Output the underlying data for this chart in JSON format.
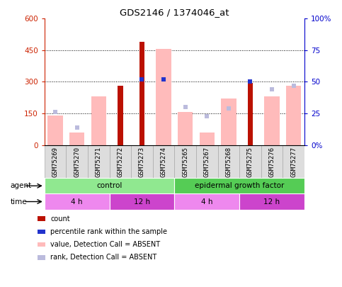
{
  "title": "GDS2146 / 1374046_at",
  "samples": [
    "GSM75269",
    "GSM75270",
    "GSM75271",
    "GSM75272",
    "GSM75273",
    "GSM75274",
    "GSM75265",
    "GSM75267",
    "GSM75268",
    "GSM75275",
    "GSM75276",
    "GSM75277"
  ],
  "count_values": [
    null,
    null,
    null,
    280,
    490,
    null,
    null,
    null,
    null,
    295,
    null,
    null
  ],
  "rank_values_pct": [
    null,
    null,
    null,
    null,
    52,
    52,
    null,
    null,
    null,
    50,
    null,
    null
  ],
  "absent_value": [
    140,
    60,
    230,
    null,
    null,
    455,
    155,
    60,
    220,
    null,
    230,
    280
  ],
  "absent_rank_pct": [
    26,
    14,
    null,
    null,
    null,
    null,
    30,
    23,
    29,
    null,
    44,
    47
  ],
  "ylim_left": [
    0,
    600
  ],
  "ylim_right": [
    0,
    100
  ],
  "yticks_left": [
    0,
    150,
    300,
    450,
    600
  ],
  "yticks_right": [
    0,
    25,
    50,
    75,
    100
  ],
  "left_tick_labels": [
    "0",
    "150",
    "300",
    "450",
    "600"
  ],
  "right_tick_labels": [
    "0%",
    "25",
    "50",
    "75",
    "100%"
  ],
  "agent_groups": [
    {
      "label": "control",
      "start": 0,
      "end": 6,
      "color": "#90e890"
    },
    {
      "label": "epidermal growth factor",
      "start": 6,
      "end": 12,
      "color": "#55cc55"
    }
  ],
  "time_groups": [
    {
      "label": "4 h",
      "start": 0,
      "end": 3,
      "color": "#ee88ee"
    },
    {
      "label": "12 h",
      "start": 3,
      "end": 6,
      "color": "#cc44cc"
    },
    {
      "label": "4 h",
      "start": 6,
      "end": 9,
      "color": "#ee88ee"
    },
    {
      "label": "12 h",
      "start": 9,
      "end": 12,
      "color": "#cc44cc"
    }
  ],
  "legend_items": [
    {
      "label": "count",
      "color": "#bb1100"
    },
    {
      "label": "percentile rank within the sample",
      "color": "#2233cc"
    },
    {
      "label": "value, Detection Call = ABSENT",
      "color": "#ffbbbb"
    },
    {
      "label": "rank, Detection Call = ABSENT",
      "color": "#bbbbdd"
    }
  ],
  "count_color": "#bb1100",
  "rank_color": "#2233cc",
  "absent_value_color": "#ffbbbb",
  "absent_rank_color": "#bbbbdd",
  "tick_color_left": "#cc2200",
  "tick_color_right": "#0000cc",
  "cell_bg": "#dddddd",
  "cell_border": "#aaaaaa"
}
